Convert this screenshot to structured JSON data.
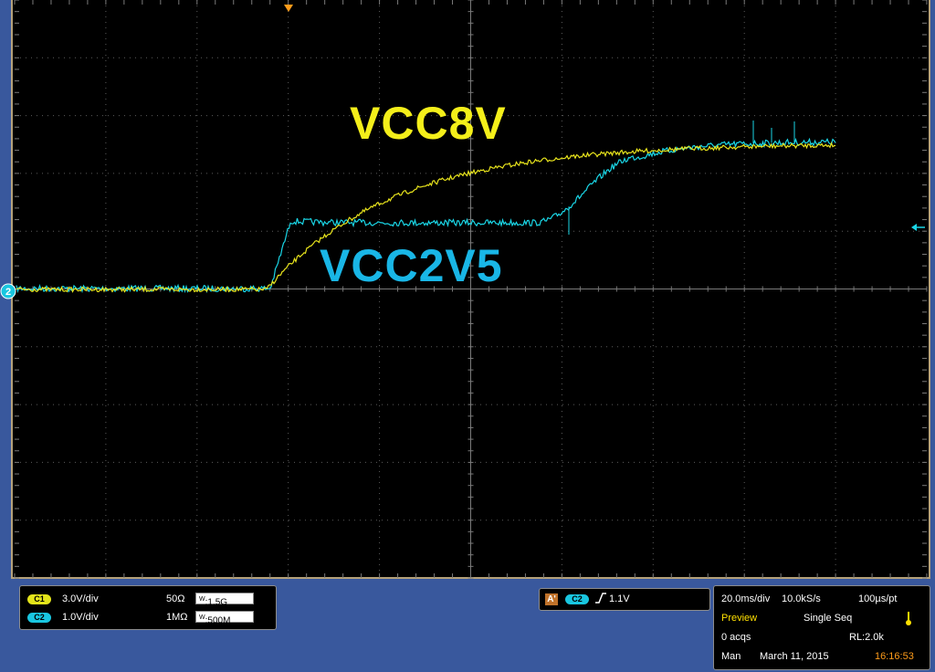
{
  "channels": [
    {
      "badge": "C1",
      "scale": "3.0V/div",
      "impedance": "50Ω",
      "bw_label": "W",
      "bw_value": ":1.5G",
      "color": "#e3e41a"
    },
    {
      "badge": "C2",
      "scale": "1.0V/div",
      "impedance": "1MΩ",
      "bw_label": "W",
      "bw_value": ":500M",
      "color": "#19c6e0"
    }
  ],
  "waveform_labels": {
    "ch1": "VCC8V",
    "ch2": "VCC2V5"
  },
  "ch2_marker": "2",
  "trigger": {
    "icon": "A'",
    "source": "C2",
    "edge": "rising-edge-icon",
    "level": "1.1V"
  },
  "acquisition": {
    "timebase": "20.0ms/div",
    "sample_rate": "10.0kS/s",
    "resolution": "100µs/pt",
    "state": "Preview",
    "mode": "Single Seq",
    "acqs": "0 acqs",
    "record_length": "RL:2.0k",
    "control": "Man",
    "date": "March 11, 2015",
    "time": "16:16:53"
  },
  "colors": {
    "ch1": "#f4ef1a",
    "ch2": "#19b6e6",
    "ch2_trace": "#1ad6e6",
    "trigger_marker": "#ff9c1a",
    "time_text": "#ff9c1a",
    "preview_text": "#ffe000"
  }
}
